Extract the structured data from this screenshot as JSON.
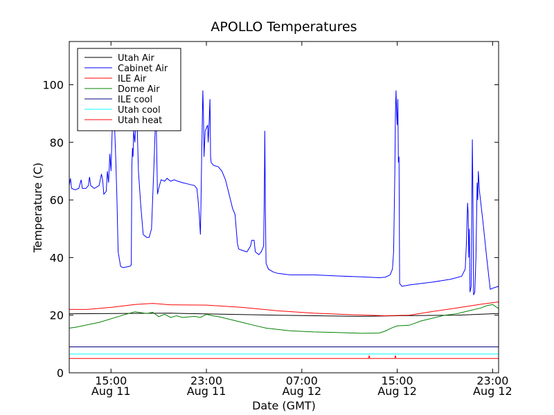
{
  "chart_data": {
    "type": "line",
    "title": "APOLLO Temperatures",
    "xlabel": "Date (GMT)",
    "ylabel": "Temperature (C)",
    "x_unit": "hours",
    "xlim": [
      11.5,
      47.5
    ],
    "ylim": [
      0,
      115
    ],
    "grid": false,
    "legend_position": "top-left",
    "x_ticks": [
      {
        "x": 15,
        "line1": "15:00",
        "line2": "Aug 11"
      },
      {
        "x": 23,
        "line1": "23:00",
        "line2": "Aug 11"
      },
      {
        "x": 31,
        "line1": "07:00",
        "line2": "Aug 12"
      },
      {
        "x": 39,
        "line1": "15:00",
        "line2": "Aug 12"
      },
      {
        "x": 47,
        "line1": "23:00",
        "line2": "Aug 12"
      }
    ],
    "y_ticks": [
      0,
      20,
      40,
      60,
      80,
      100
    ],
    "series": [
      {
        "name": "Utah Air",
        "color": "#000000",
        "points": [
          [
            11.5,
            20.5
          ],
          [
            20,
            20.7
          ],
          [
            29,
            20.0
          ],
          [
            36,
            19.6
          ],
          [
            39,
            19.8
          ],
          [
            44,
            20.0
          ],
          [
            47.5,
            20.6
          ]
        ]
      },
      {
        "name": "Cabinet Air",
        "color": "#0000ff",
        "points": [
          [
            11.5,
            65
          ],
          [
            11.6,
            67.5
          ],
          [
            11.7,
            64
          ],
          [
            12,
            63.5
          ],
          [
            12.3,
            64
          ],
          [
            12.5,
            67
          ],
          [
            12.6,
            64
          ],
          [
            12.9,
            64
          ],
          [
            13.1,
            65
          ],
          [
            13.2,
            68
          ],
          [
            13.3,
            65
          ],
          [
            13.6,
            64
          ],
          [
            14,
            65
          ],
          [
            14.2,
            69
          ],
          [
            14.3,
            67
          ],
          [
            14.4,
            62
          ],
          [
            14.6,
            63
          ],
          [
            14.7,
            70
          ],
          [
            14.8,
            66
          ],
          [
            14.9,
            76
          ],
          [
            15.0,
            70
          ],
          [
            15.1,
            84
          ],
          [
            15.2,
            88
          ],
          [
            15.3,
            86
          ],
          [
            15.4,
            74
          ],
          [
            15.5,
            60
          ],
          [
            15.6,
            42
          ],
          [
            15.8,
            37
          ],
          [
            16,
            36.5
          ],
          [
            16.6,
            37
          ],
          [
            16.7,
            37.5
          ],
          [
            16.75,
            72
          ],
          [
            16.8,
            78
          ],
          [
            16.85,
            75
          ],
          [
            16.9,
            84
          ],
          [
            17.0,
            80
          ],
          [
            17.1,
            88
          ],
          [
            17.2,
            85
          ],
          [
            17.3,
            70
          ],
          [
            17.5,
            58
          ],
          [
            17.7,
            48
          ],
          [
            18,
            47
          ],
          [
            18.2,
            47
          ],
          [
            18.4,
            50
          ],
          [
            18.6,
            72
          ],
          [
            18.7,
            84
          ],
          [
            18.8,
            86
          ],
          [
            18.9,
            62
          ],
          [
            19.0,
            64
          ],
          [
            19.2,
            67
          ],
          [
            19.5,
            66.5
          ],
          [
            19.7,
            67.5
          ],
          [
            20,
            66.5
          ],
          [
            20.3,
            67
          ],
          [
            20.6,
            66.5
          ],
          [
            21,
            66
          ],
          [
            21.5,
            65.5
          ],
          [
            22,
            65
          ],
          [
            22.2,
            64
          ],
          [
            22.3,
            60
          ],
          [
            22.4,
            55
          ],
          [
            22.5,
            48
          ],
          [
            22.55,
            60
          ],
          [
            22.6,
            75
          ],
          [
            22.7,
            98
          ],
          [
            22.75,
            90
          ],
          [
            22.8,
            75
          ],
          [
            22.9,
            84
          ],
          [
            23.0,
            85
          ],
          [
            23.1,
            86
          ],
          [
            23.15,
            80
          ],
          [
            23.2,
            84
          ],
          [
            23.3,
            95
          ],
          [
            23.35,
            75
          ],
          [
            23.4,
            73
          ],
          [
            23.6,
            72
          ],
          [
            24,
            71.5
          ],
          [
            24.3,
            70
          ],
          [
            24.6,
            67
          ],
          [
            24.9,
            62
          ],
          [
            25.2,
            57
          ],
          [
            25.4,
            55
          ],
          [
            25.5,
            50
          ],
          [
            25.6,
            45
          ],
          [
            25.7,
            43
          ],
          [
            26,
            42.5
          ],
          [
            26.4,
            42
          ],
          [
            26.7,
            44
          ],
          [
            26.8,
            46
          ],
          [
            27,
            46
          ],
          [
            27.1,
            42
          ],
          [
            27.4,
            41
          ],
          [
            27.6,
            42
          ],
          [
            27.8,
            44
          ],
          [
            27.85,
            60
          ],
          [
            27.9,
            84
          ],
          [
            27.95,
            55
          ],
          [
            28.0,
            38
          ],
          [
            28.2,
            36
          ],
          [
            28.6,
            35
          ],
          [
            29,
            34.5
          ],
          [
            30,
            34
          ],
          [
            32,
            34
          ],
          [
            34,
            33.6
          ],
          [
            36,
            33.3
          ],
          [
            37.5,
            33
          ],
          [
            38,
            33.2
          ],
          [
            38.4,
            34
          ],
          [
            38.6,
            36
          ],
          [
            38.7,
            42
          ],
          [
            38.8,
            70
          ],
          [
            38.85,
            90
          ],
          [
            38.9,
            98
          ],
          [
            38.95,
            90
          ],
          [
            39.0,
            86
          ],
          [
            39.05,
            95
          ],
          [
            39.1,
            73
          ],
          [
            39.15,
            75
          ],
          [
            39.2,
            31
          ],
          [
            39.4,
            30
          ],
          [
            40,
            30.5
          ],
          [
            42,
            31.5
          ],
          [
            43.5,
            32.5
          ],
          [
            44.4,
            33.5
          ],
          [
            44.7,
            36
          ],
          [
            44.8,
            45
          ],
          [
            44.9,
            59
          ],
          [
            44.95,
            55
          ],
          [
            45.0,
            40
          ],
          [
            45.05,
            50
          ],
          [
            45.1,
            28
          ],
          [
            45.2,
            30
          ],
          [
            45.3,
            81
          ],
          [
            45.35,
            60
          ],
          [
            45.4,
            27
          ],
          [
            45.5,
            28
          ],
          [
            45.6,
            40
          ],
          [
            45.7,
            66
          ],
          [
            45.75,
            60
          ],
          [
            45.8,
            70
          ],
          [
            45.9,
            63
          ],
          [
            46.2,
            52
          ],
          [
            46.5,
            40
          ],
          [
            46.8,
            29
          ],
          [
            47.1,
            29.5
          ],
          [
            47.5,
            30
          ]
        ]
      },
      {
        "name": "ILE Air",
        "color": "#ff0000",
        "points": [
          [
            11.5,
            22
          ],
          [
            13,
            22
          ],
          [
            15,
            22.7
          ],
          [
            17,
            23.7
          ],
          [
            18.5,
            24.1
          ],
          [
            20,
            23.6
          ],
          [
            23,
            23.5
          ],
          [
            26,
            22.7
          ],
          [
            29,
            21.5
          ],
          [
            32,
            20.7
          ],
          [
            35,
            20.2
          ],
          [
            38,
            19.8
          ],
          [
            40,
            20
          ],
          [
            42,
            21.3
          ],
          [
            44,
            22.5
          ],
          [
            46,
            23.8
          ],
          [
            47.5,
            24.6
          ]
        ]
      },
      {
        "name": "Dome Air",
        "color": "#008000",
        "points": [
          [
            11.5,
            15.5
          ],
          [
            12,
            15.8
          ],
          [
            14,
            17.5
          ],
          [
            16,
            20
          ],
          [
            17,
            21.2
          ],
          [
            18,
            20.6
          ],
          [
            18.5,
            21
          ],
          [
            19,
            19.5
          ],
          [
            19.5,
            20.3
          ],
          [
            20,
            19.2
          ],
          [
            20.5,
            19.8
          ],
          [
            21,
            19.2
          ],
          [
            22,
            19.6
          ],
          [
            22.5,
            19.2
          ],
          [
            23,
            20.3
          ],
          [
            23.5,
            19.8
          ],
          [
            24,
            19.5
          ],
          [
            25,
            18.5
          ],
          [
            26,
            17.5
          ],
          [
            27,
            16.5
          ],
          [
            28,
            15.5
          ],
          [
            30,
            14.6
          ],
          [
            32,
            14.2
          ],
          [
            34,
            14
          ],
          [
            36,
            13.7
          ],
          [
            37.5,
            13.8
          ],
          [
            38,
            14.5
          ],
          [
            38.5,
            15.5
          ],
          [
            39,
            16.3
          ],
          [
            40,
            16.5
          ],
          [
            41,
            18
          ],
          [
            42,
            19
          ],
          [
            43,
            20
          ],
          [
            44,
            20.5
          ],
          [
            45,
            21.5
          ],
          [
            46,
            22.5
          ],
          [
            46.5,
            23.3
          ],
          [
            47,
            23.7
          ],
          [
            47.5,
            22.3
          ]
        ]
      },
      {
        "name": "ILE cool",
        "color": "#000080",
        "points": [
          [
            11.5,
            9
          ],
          [
            47.5,
            9
          ]
        ]
      },
      {
        "name": "Utah cool",
        "color": "#00ffff",
        "points": [
          [
            11.5,
            6.5
          ],
          [
            47.5,
            6.5
          ]
        ]
      },
      {
        "name": "Utah heat",
        "color": "#ff0000",
        "points": [
          [
            11.5,
            5
          ],
          [
            36.6,
            5
          ],
          [
            36.65,
            6
          ],
          [
            36.7,
            5
          ],
          [
            38.8,
            5
          ],
          [
            38.85,
            6
          ],
          [
            38.9,
            5
          ],
          [
            47.5,
            5
          ]
        ]
      }
    ]
  }
}
